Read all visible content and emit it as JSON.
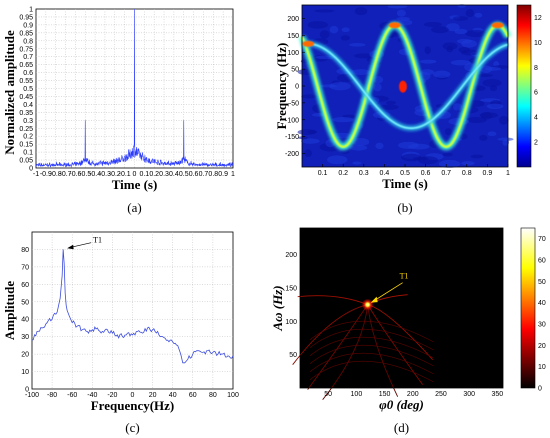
{
  "panel_labels": [
    "(a)",
    "(b)",
    "(c)",
    "(d)"
  ],
  "chart_data": [
    {
      "type": "line",
      "panel": "(a)",
      "xlabel": "Time (s)",
      "ylabel": "Normalized amplitude",
      "xlim": [
        -1,
        1
      ],
      "ylim": [
        0,
        1
      ],
      "xticks": [
        "-1",
        "-0.9",
        "-0.8",
        "-0.7",
        "-0.6",
        "-0.5",
        "-0.4",
        "-0.3",
        "-0.2",
        "-0.1",
        "0",
        "0.1",
        "0.2",
        "0.3",
        "0.4",
        "0.5",
        "0.6",
        "0.7",
        "0.8",
        "0.9",
        "1"
      ],
      "yticks": [
        "0",
        "0.05",
        "0.1",
        "0.15",
        "0.2",
        "0.25",
        "0.3",
        "0.35",
        "0.4",
        "0.45",
        "0.5",
        "0.55",
        "0.6",
        "0.65",
        "0.7",
        "0.75",
        "0.8",
        "0.85",
        "0.9",
        "0.95",
        "1"
      ],
      "grid": true,
      "peaks": [
        {
          "x": -0.5,
          "y": 0.3
        },
        {
          "x": 0.0,
          "y": 1.0
        },
        {
          "x": 0.5,
          "y": 0.3
        }
      ],
      "series_color": "#2b3bff"
    },
    {
      "type": "heatmap",
      "panel": "(b)",
      "xlabel": "Time (s)",
      "ylabel": "Frequency (Hz)",
      "xlim": [
        0,
        1
      ],
      "ylim": [
        -240,
        240
      ],
      "xticks": [
        "0.1",
        "0.2",
        "0.3",
        "0.4",
        "0.5",
        "0.6",
        "0.7",
        "0.8",
        "0.9",
        "1"
      ],
      "yticks": [
        "200",
        "150",
        "100",
        "50",
        "0",
        "-50",
        "-100",
        "-150",
        "-200"
      ],
      "colorbar_ticks": [
        "12",
        "10",
        "8",
        "6",
        "4",
        "2"
      ],
      "colorbar_range": [
        0,
        13
      ],
      "curves": [
        {
          "name": "",
          "form": "sinusoid",
          "amplitude_hz": 180,
          "period_s": 0.5,
          "peak_times_s": [
            0.45,
            0.95
          ],
          "trough_times_s": [
            0.2,
            0.7
          ]
        },
        {
          "name": "",
          "form": "sinusoid",
          "amplitude_hz": 125,
          "period_s": 1.0,
          "peak_times_s": [
            0.03
          ],
          "trough_times_s": [
            0.53
          ]
        }
      ]
    },
    {
      "type": "line",
      "panel": "(c)",
      "xlabel": "Frequency(Hz)",
      "ylabel": "Amplitude",
      "xlim": [
        -100,
        100
      ],
      "ylim": [
        0,
        90
      ],
      "xticks": [
        "-100",
        "-80",
        "-60",
        "-40",
        "-20",
        "0",
        "20",
        "40",
        "60",
        "80",
        "100"
      ],
      "yticks": [
        "0",
        "10",
        "20",
        "30",
        "40",
        "50",
        "60",
        "70",
        "80"
      ],
      "grid": true,
      "series_color": "#3c4cdc",
      "x": [
        -100,
        -95,
        -90,
        -85,
        -80,
        -75,
        -72,
        -70,
        -69,
        -68,
        -67,
        -66,
        -65,
        -63,
        -60,
        -55,
        -50,
        -45,
        -40,
        -35,
        -30,
        -25,
        -20,
        -15,
        -10,
        -5,
        0,
        5,
        10,
        15,
        20,
        25,
        30,
        35,
        40,
        45,
        48,
        50,
        52,
        55,
        60,
        65,
        70,
        75,
        80,
        85,
        90,
        95,
        100
      ],
      "y": [
        28,
        33,
        35,
        38,
        40,
        44,
        52,
        65,
        80,
        72,
        55,
        48,
        45,
        42,
        38,
        36,
        34,
        33,
        34,
        35,
        33,
        34,
        32,
        31,
        30,
        32,
        31,
        33,
        32,
        35,
        34,
        33,
        30,
        28,
        27,
        25,
        20,
        15,
        15,
        17,
        20,
        22,
        21,
        22,
        21,
        20,
        20,
        19,
        19
      ],
      "annotation": {
        "text": "T1",
        "x": -67,
        "y": 81
      }
    },
    {
      "type": "heatmap",
      "panel": "(d)",
      "xlabel": "φ0 (deg)",
      "ylabel": "Aω (Hz)",
      "xlim": [
        0,
        360
      ],
      "ylim": [
        0,
        240
      ],
      "xticks": [
        "50",
        "100",
        "150",
        "200",
        "250",
        "300",
        "350"
      ],
      "yticks": [
        "200",
        "150",
        "100",
        "50"
      ],
      "colorbar_ticks": [
        "70",
        "60",
        "50",
        "40",
        "30",
        "20",
        "10",
        "0"
      ],
      "colorbar_range": [
        0,
        75
      ],
      "annotation": {
        "text": "T1",
        "x": 120,
        "y": 125
      },
      "peak": {
        "x": 120,
        "y": 125,
        "value": 75
      }
    }
  ]
}
